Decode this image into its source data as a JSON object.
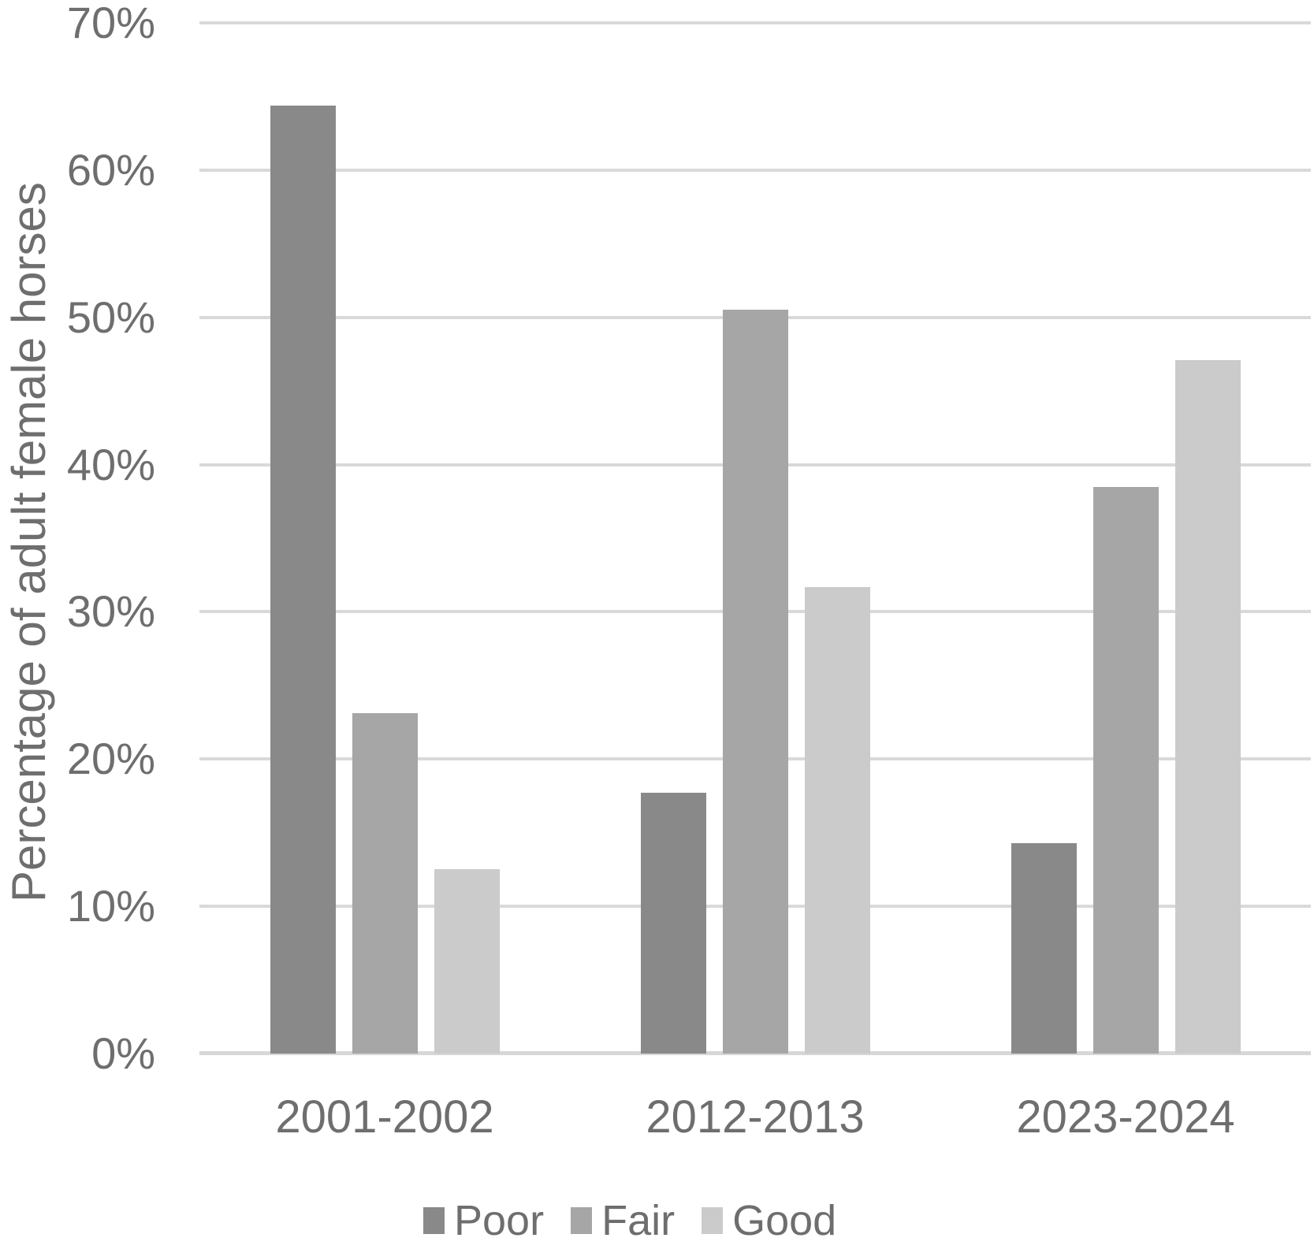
{
  "chart_data": {
    "type": "bar",
    "title": "",
    "xlabel": "",
    "ylabel": "Percentage of adult female horses",
    "categories": [
      "2001-2002",
      "2012-2013",
      "2023-2024"
    ],
    "series": [
      {
        "name": "Poor",
        "color": "#898989",
        "values": [
          64.4,
          17.7,
          14.3
        ]
      },
      {
        "name": "Fair",
        "color": "#a6a6a6",
        "values": [
          23.1,
          50.5,
          38.5
        ]
      },
      {
        "name": "Good",
        "color": "#cbcbcb",
        "values": [
          12.5,
          31.7,
          47.1
        ]
      }
    ],
    "y_axis": {
      "min": 0,
      "max": 70,
      "step": 10,
      "tick_labels": [
        "0%",
        "10%",
        "20%",
        "30%",
        "40%",
        "50%",
        "60%",
        "70%"
      ]
    },
    "grid": true,
    "legend_position": "bottom",
    "legend_entries": [
      "Poor",
      "Fair",
      "Good"
    ]
  },
  "colors": {
    "background": "#ffffff",
    "gridline": "#d9d9d9",
    "axis_line": "#d7d7d7",
    "text": "#6e6e6e"
  }
}
